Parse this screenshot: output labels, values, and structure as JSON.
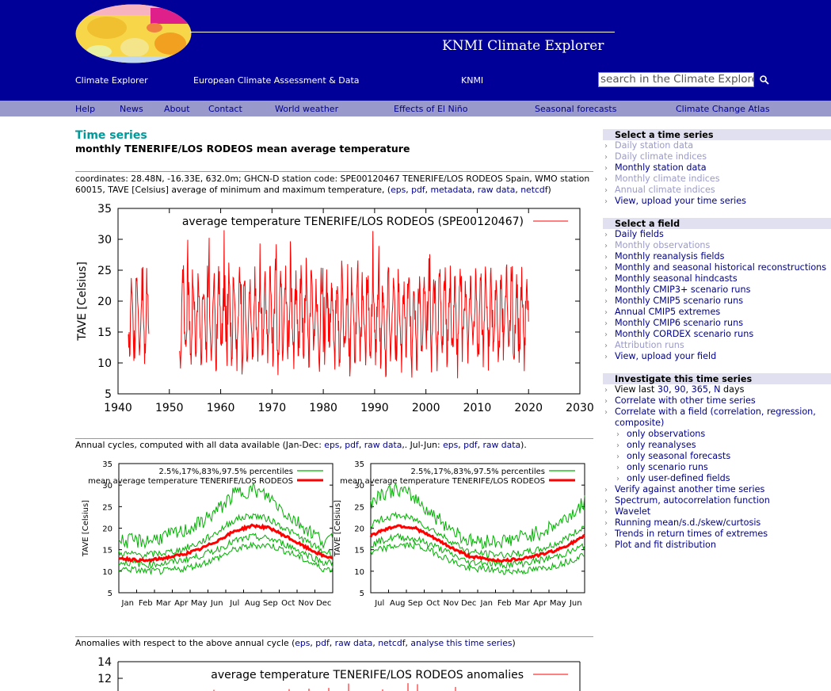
{
  "header": {
    "site_title": "KNMI Climate Explorer",
    "links": [
      "Climate Explorer",
      "European Climate Assessment & Data",
      "KNMI"
    ],
    "search_placeholder": "search in the Climate Explorer"
  },
  "nav": [
    "Help",
    "News",
    "About",
    "Contact",
    "World weather",
    "Effects of El Niño",
    "Seasonal forecasts",
    "Climate Change Atlas"
  ],
  "main": {
    "title": "Time series",
    "subtitle": "monthly TENERIFE/LOS RODEOS mean average temperature",
    "meta_text": "coordinates: 28.48N, -16.33E, 632.0m; GHCN-D station code: SPE00120467 TENERIFE/LOS RODEOS Spain, WMO station 60015, TAVE [Celsius] average of minimum and maximum temperature, (",
    "meta_links": [
      "eps",
      "pdf",
      "metadata",
      "raw data",
      "netcdf"
    ],
    "annual_prefix": "Annual cycles, computed with all data available (Jan-Dec: ",
    "annual_links1": [
      "eps",
      "pdf",
      "raw data"
    ],
    "annual_mid": ",. Jul-Jun: ",
    "annual_links2": [
      "eps",
      "pdf",
      "raw data"
    ],
    "annual_suffix": ").",
    "anom_prefix": "Anomalies with respect to the above annual cycle (",
    "anom_links": [
      "eps",
      "pdf",
      "raw data",
      "netcdf",
      "analyse this time series"
    ],
    "anom_suffix": ")"
  },
  "chart_data": [
    {
      "type": "line",
      "title": "",
      "legend": "average temperature TENERIFE/LOS RODEOS (SPE00120467)",
      "ylabel": "TAVE [Celsius]",
      "xlim": [
        1940,
        2030
      ],
      "ylim": [
        5,
        35
      ],
      "xticks": [
        1940,
        1950,
        1960,
        1970,
        1980,
        1990,
        2000,
        2010,
        2020,
        2030
      ],
      "yticks": [
        5,
        10,
        15,
        20,
        25,
        30,
        35
      ],
      "segments": [
        [
          1942,
          1946
        ],
        [
          1952,
          2020
        ]
      ],
      "seasonal_min": 9.5,
      "seasonal_max": 25,
      "color": "#ff0000",
      "legend_position": "top"
    },
    {
      "type": "line",
      "ylabel": "TAVE [Celsius]",
      "ylim": [
        5,
        35
      ],
      "yticks": [
        5,
        10,
        15,
        20,
        25,
        30,
        35
      ],
      "categories": [
        "Jan",
        "Feb",
        "Mar",
        "Apr",
        "May",
        "Jun",
        "Jul",
        "Aug",
        "Sep",
        "Oct",
        "Nov",
        "Dec"
      ],
      "series": [
        {
          "name": "2.5%,17%,83%,97.5% percentiles",
          "color": "#00b000",
          "percentiles": [
            [
              10.5,
              10,
              10,
              10.5,
              11.5,
              13,
              15,
              16,
              16,
              14.5,
              12.5,
              10.5
            ],
            [
              12,
              11.5,
              11.8,
              12.5,
              13.5,
              15,
              17,
              18,
              17.5,
              16,
              14,
              12
            ],
            [
              14,
              13.8,
              14.2,
              15,
              16.5,
              19,
              22,
              23,
              22,
              19.5,
              17,
              14.5
            ],
            [
              17,
              17,
              18,
              19,
              21,
              24,
              28,
              29,
              27,
              23,
              20,
              17
            ]
          ]
        },
        {
          "name": "mean average temperature TENERIFE/LOS RODEOS",
          "color": "#ff0000",
          "values": [
            12.8,
            12.4,
            13,
            13.8,
            15,
            17,
            19.3,
            20.6,
            20,
            17.8,
            15.5,
            13.5
          ]
        }
      ]
    },
    {
      "type": "line",
      "ylabel": "TAVE [Celsius]",
      "ylim": [
        5,
        35
      ],
      "yticks": [
        5,
        10,
        15,
        20,
        25,
        30,
        35
      ],
      "categories": [
        "Jul",
        "Aug",
        "Sep",
        "Oct",
        "Nov",
        "Dec",
        "Jan",
        "Feb",
        "Mar",
        "Apr",
        "May",
        "Jun"
      ],
      "series": [
        {
          "name": "2.5%,17%,83%,97.5% percentiles",
          "color": "#00b000"
        },
        {
          "name": "mean average temperature TENERIFE/LOS RODEOS",
          "color": "#ff0000"
        }
      ]
    },
    {
      "type": "line",
      "legend": "average temperature TENERIFE/LOS RODEOS anomalies",
      "yticks": [
        12,
        14
      ]
    }
  ],
  "sidebar": {
    "sections": [
      {
        "title": "Select a time series",
        "items": [
          {
            "label": "Daily station data",
            "state": "disabled"
          },
          {
            "label": "Daily climate indices",
            "state": "disabled"
          },
          {
            "label": "Monthly station data",
            "state": "link"
          },
          {
            "label": "Monthly climate indices",
            "state": "disabled"
          },
          {
            "label": "Annual climate indices",
            "state": "disabled"
          },
          {
            "label": "View, upload your time series",
            "state": "link"
          }
        ]
      },
      {
        "title": "Select a field",
        "items": [
          {
            "label": "Daily fields",
            "state": "link"
          },
          {
            "label": "Monthly observations",
            "state": "disabled"
          },
          {
            "label": "Monthly reanalysis fields",
            "state": "link"
          },
          {
            "label": "Monthly and seasonal historical reconstructions",
            "state": "link"
          },
          {
            "label": "Monthly seasonal hindcasts",
            "state": "link"
          },
          {
            "label": "Monthly CMIP3+ scenario runs",
            "state": "link"
          },
          {
            "label": "Monthly CMIP5 scenario runs",
            "state": "link"
          },
          {
            "label": "Annual CMIP5 extremes",
            "state": "link"
          },
          {
            "label": "Monthly CMIP6 scenario runs",
            "state": "link"
          },
          {
            "label": "Monthly CORDEX scenario runs",
            "state": "link"
          },
          {
            "label": "Attribution runs",
            "state": "disabled"
          },
          {
            "label": "View, upload your field",
            "state": "link"
          }
        ]
      },
      {
        "title": "Investigate this time series",
        "items": [
          {
            "label": "View last ",
            "state": "plain",
            "days": [
              "30",
              "90",
              "365",
              "N"
            ],
            "suffix": " days"
          },
          {
            "label": "Correlate with other time series",
            "state": "link"
          },
          {
            "label": "Correlate with a field (correlation, regression,",
            "state": "link"
          },
          {
            "label": "composite)",
            "state": "cont"
          },
          {
            "label": "only observations",
            "state": "sub"
          },
          {
            "label": "only reanalyses",
            "state": "sub"
          },
          {
            "label": "only seasonal forecasts",
            "state": "sub"
          },
          {
            "label": "only scenario runs",
            "state": "sub"
          },
          {
            "label": "only user-defined fields",
            "state": "sub"
          },
          {
            "label": "Verify against another time series",
            "state": "link"
          },
          {
            "label": "Spectrum, autocorrelation function",
            "state": "link"
          },
          {
            "label": "Wavelet",
            "state": "link"
          },
          {
            "label": "Running mean/s.d./skew/curtosis",
            "state": "link"
          },
          {
            "label": "Trends in return times of extremes",
            "state": "link"
          },
          {
            "label": "Plot and fit distribution",
            "state": "link"
          }
        ]
      }
    ]
  }
}
